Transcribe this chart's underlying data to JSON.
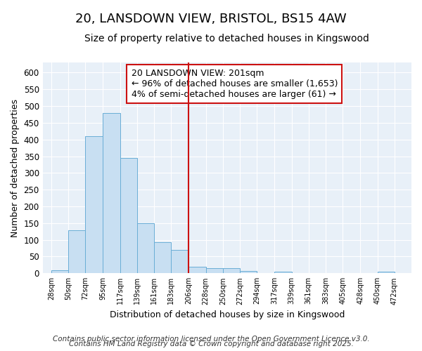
{
  "title1": "20, LANSDOWN VIEW, BRISTOL, BS15 4AW",
  "title2": "Size of property relative to detached houses in Kingswood",
  "xlabel": "Distribution of detached houses by size in Kingswood",
  "ylabel": "Number of detached properties",
  "footer1": "Contains HM Land Registry data © Crown copyright and database right 2025.",
  "footer2": "Contains public sector information licensed under the Open Government Licence v3.0.",
  "bar_left_edges": [
    28,
    50,
    72,
    95,
    117,
    139,
    161,
    183,
    206,
    228,
    250,
    272,
    294,
    317,
    339,
    361,
    383,
    405,
    428,
    450
  ],
  "bar_widths": [
    22,
    22,
    23,
    22,
    22,
    22,
    22,
    23,
    22,
    22,
    22,
    22,
    23,
    22,
    22,
    22,
    22,
    23,
    22,
    22
  ],
  "bar_heights": [
    10,
    128,
    410,
    480,
    344,
    150,
    92,
    70,
    20,
    15,
    15,
    7,
    0,
    4,
    0,
    0,
    0,
    0,
    0,
    5
  ],
  "bar_color": "#c8dff2",
  "bar_edge_color": "#6aaed6",
  "vline_x": 206,
  "vline_color": "#cc1111",
  "annotation_text": "20 LANSDOWN VIEW: 201sqm\n← 96% of detached houses are smaller (1,653)\n4% of semi-detached houses are larger (61) →",
  "ylim": [
    0,
    630
  ],
  "xlim": [
    17,
    494
  ],
  "yticks": [
    0,
    50,
    100,
    150,
    200,
    250,
    300,
    350,
    400,
    450,
    500,
    550,
    600
  ],
  "tick_labels": [
    "28sqm",
    "50sqm",
    "72sqm",
    "95sqm",
    "117sqm",
    "139sqm",
    "161sqm",
    "183sqm",
    "206sqm",
    "228sqm",
    "250sqm",
    "272sqm",
    "294sqm",
    "317sqm",
    "339sqm",
    "361sqm",
    "383sqm",
    "405sqm",
    "428sqm",
    "450sqm",
    "472sqm"
  ],
  "tick_positions": [
    28,
    50,
    72,
    95,
    117,
    139,
    161,
    183,
    206,
    228,
    250,
    272,
    294,
    317,
    339,
    361,
    383,
    405,
    428,
    450,
    472
  ],
  "plot_bg_color": "#e8f0f8",
  "fig_bg_color": "#ffffff",
  "grid_color": "#ffffff",
  "title1_fontsize": 13,
  "title2_fontsize": 10,
  "annotation_fontsize": 9,
  "footer_fontsize": 7.5,
  "ylabel_fontsize": 9,
  "xlabel_fontsize": 9
}
